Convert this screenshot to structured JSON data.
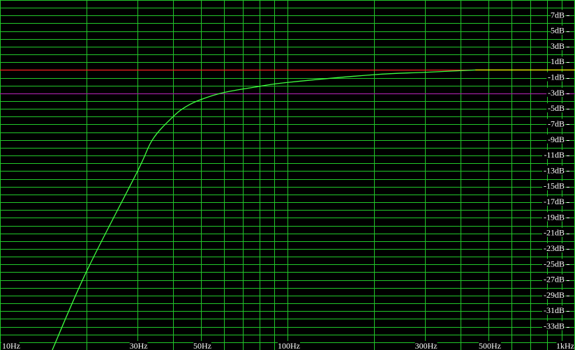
{
  "chart_data": {
    "type": "line",
    "title": "",
    "xlabel": "",
    "ylabel": "",
    "x_scale": "log",
    "xlim": [
      10,
      1000
    ],
    "ylim": [
      -36,
      9
    ],
    "grid": true,
    "x_grid_values": [
      10,
      20,
      30,
      40,
      50,
      60,
      70,
      80,
      90,
      100,
      200,
      300,
      400,
      500,
      600,
      700,
      800,
      900,
      1000
    ],
    "y_grid_step": 1,
    "x_tick_labels": [
      {
        "value": 10,
        "label": "10Hz"
      },
      {
        "value": 30,
        "label": "30Hz"
      },
      {
        "value": 50,
        "label": "50Hz"
      },
      {
        "value": 100,
        "label": "100Hz"
      },
      {
        "value": 300,
        "label": "300Hz"
      },
      {
        "value": 500,
        "label": "500Hz"
      },
      {
        "value": 1000,
        "label": "1kHz"
      }
    ],
    "y_tick_labels": [
      {
        "value": 7,
        "label": "7dB"
      },
      {
        "value": 5,
        "label": "5dB"
      },
      {
        "value": 3,
        "label": "3dB"
      },
      {
        "value": 1,
        "label": "1dB"
      },
      {
        "value": -1,
        "label": "-1dB"
      },
      {
        "value": -3,
        "label": "-3dB"
      },
      {
        "value": -5,
        "label": "-5dB"
      },
      {
        "value": -7,
        "label": "-7dB"
      },
      {
        "value": -9,
        "label": "-9dB"
      },
      {
        "value": -11,
        "label": "-11dB"
      },
      {
        "value": -13,
        "label": "-13dB"
      },
      {
        "value": -15,
        "label": "-15dB"
      },
      {
        "value": -17,
        "label": "-17dB"
      },
      {
        "value": -19,
        "label": "-19dB"
      },
      {
        "value": -21,
        "label": "-21dB"
      },
      {
        "value": -23,
        "label": "-23dB"
      },
      {
        "value": -25,
        "label": "-25dB"
      },
      {
        "value": -27,
        "label": "-27dB"
      },
      {
        "value": -29,
        "label": "-29dB"
      },
      {
        "value": -31,
        "label": "-31dB"
      },
      {
        "value": -33,
        "label": "-33dB"
      }
    ],
    "reference_lines": [
      {
        "value": 0,
        "color": "#ff2020",
        "x_range": [
          10,
          450
        ]
      },
      {
        "value": -3,
        "color": "#a020a0",
        "x_range": [
          10,
          1000
        ]
      }
    ],
    "series": [
      {
        "color": "#40ff40",
        "x": [
          15.2,
          20,
          30,
          34,
          40,
          44.4,
          50,
          60,
          80,
          100,
          200,
          300,
          450
        ],
        "y": [
          -36,
          -25.9,
          -13.1,
          -8.9,
          -6.0,
          -4.7,
          -3.8,
          -2.9,
          -2.1,
          -1.6,
          -0.6,
          -0.3,
          0
        ]
      },
      {
        "color": "#ffff00",
        "x": [
          450,
          1000
        ],
        "y": [
          0,
          0
        ]
      }
    ],
    "colors": {
      "background": "#000000",
      "grid": "#22c82a",
      "labels": "#ffffff"
    }
  }
}
